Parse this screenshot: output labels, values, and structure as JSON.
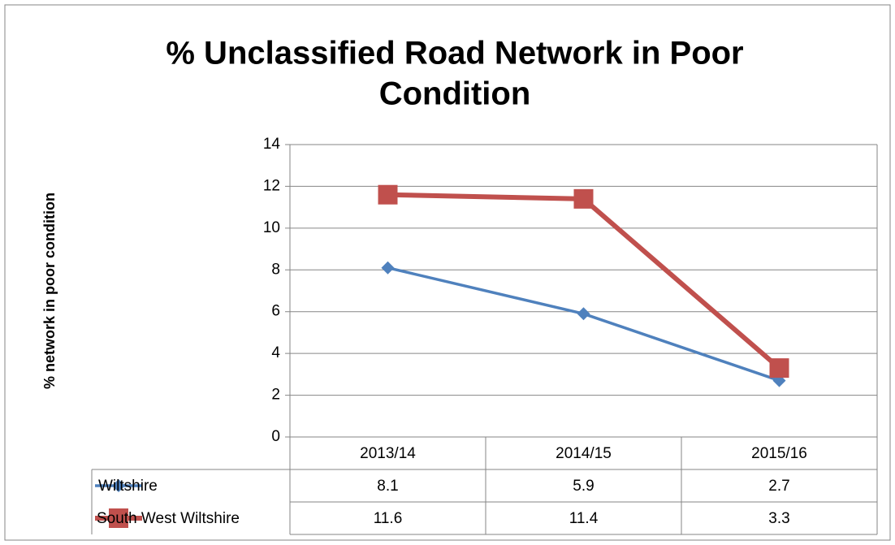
{
  "chart_data": {
    "type": "line",
    "title": [
      "% Unclassified Road Network in Poor",
      "Condition"
    ],
    "ylabel": "% network in poor condition",
    "categories": [
      "2013/14",
      "2014/15",
      "2015/16"
    ],
    "series": [
      {
        "name": "Wiltshire",
        "color": "#4f81bd",
        "marker": "diamond",
        "values": [
          8.1,
          5.9,
          2.7
        ]
      },
      {
        "name": "South West Wiltshire",
        "color": "#c0504d",
        "marker": "square",
        "values": [
          11.6,
          11.4,
          3.3
        ]
      }
    ],
    "ylim": [
      0,
      14
    ],
    "yticks": [
      0,
      2,
      4,
      6,
      8,
      10,
      12,
      14
    ],
    "grid": true,
    "data_table": true
  }
}
